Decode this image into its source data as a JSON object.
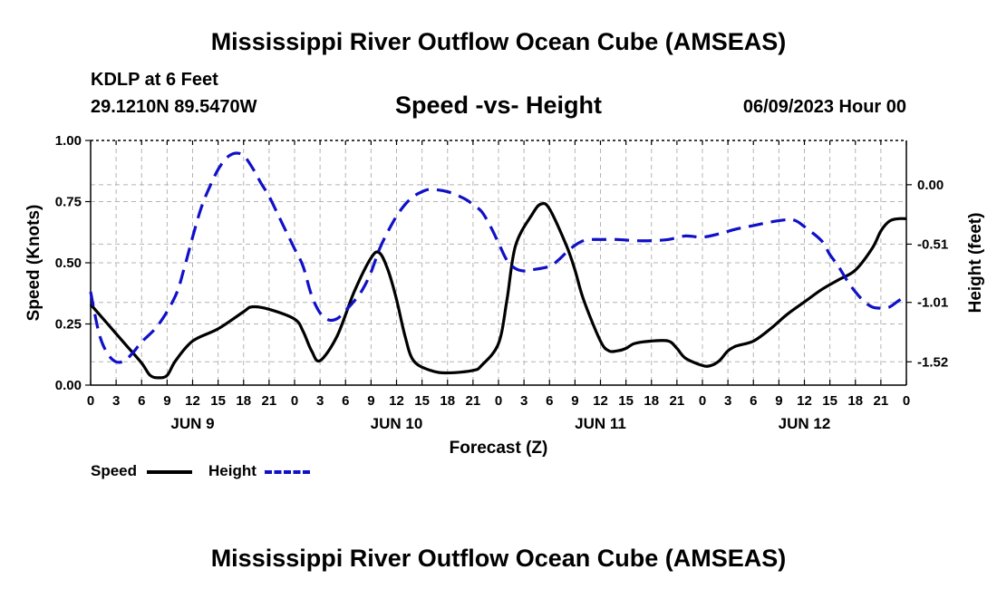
{
  "header": {
    "title": "Mississippi River Outflow Ocean Cube (AMSEAS)",
    "station": "KDLP at 6 Feet",
    "coords": "29.1210N  89.5470W",
    "chart_title": "Speed -vs- Height",
    "datetime": "06/09/2023 Hour 00",
    "footer_title": "Mississippi River Outflow Ocean Cube (AMSEAS)"
  },
  "legend": {
    "speed_label": "Speed",
    "height_label": "Height"
  },
  "colors": {
    "speed": "#000000",
    "height": "#1010c8",
    "grid": "#b4b4b4"
  },
  "chart_data": {
    "type": "line",
    "title": "Speed -vs- Height",
    "xlabel": "Forecast (Z)",
    "ylabel": "Speed (Knots)",
    "y2label": "Height (feet)",
    "x_ticks": [
      "0",
      "3",
      "6",
      "9",
      "12",
      "15",
      "18",
      "21",
      "0",
      "3",
      "6",
      "9",
      "12",
      "15",
      "18",
      "21",
      "0",
      "3",
      "6",
      "9",
      "12",
      "15",
      "18",
      "21",
      "0",
      "3",
      "6",
      "9",
      "12",
      "15",
      "18",
      "21",
      "0"
    ],
    "day_labels": [
      {
        "label": "JUN 9",
        "hour": 12
      },
      {
        "label": "JUN 10",
        "hour": 36
      },
      {
        "label": "JUN 11",
        "hour": 60
      },
      {
        "label": "JUN 12",
        "hour": 84
      }
    ],
    "xlim": [
      0,
      96
    ],
    "ylim": [
      0,
      1.0
    ],
    "y_ticks": [
      0.0,
      0.25,
      0.5,
      0.75,
      1.0
    ],
    "y_tick_labels": [
      "0.00",
      "0.25",
      "0.50",
      "0.75",
      "1.00"
    ],
    "y2lim": [
      -1.72,
      0.38
    ],
    "y2_ticks": [
      0.0,
      -0.51,
      -1.01,
      -1.52
    ],
    "y2_tick_labels": [
      "0.00",
      "-0.51",
      "-1.01",
      "-1.52"
    ],
    "grid": true,
    "series": [
      {
        "name": "Speed",
        "axis": "left",
        "style": "solid",
        "points": [
          [
            0,
            0.33
          ],
          [
            2,
            0.25
          ],
          [
            4,
            0.17
          ],
          [
            6,
            0.09
          ],
          [
            7,
            0.04
          ],
          [
            8,
            0.03
          ],
          [
            9,
            0.04
          ],
          [
            10,
            0.1
          ],
          [
            12,
            0.18
          ],
          [
            15,
            0.23
          ],
          [
            18,
            0.3
          ],
          [
            19,
            0.32
          ],
          [
            21,
            0.31
          ],
          [
            24,
            0.27
          ],
          [
            25,
            0.22
          ],
          [
            26,
            0.14
          ],
          [
            27,
            0.1
          ],
          [
            29,
            0.2
          ],
          [
            31,
            0.38
          ],
          [
            33,
            0.52
          ],
          [
            34,
            0.54
          ],
          [
            35,
            0.47
          ],
          [
            36,
            0.35
          ],
          [
            37,
            0.2
          ],
          [
            38,
            0.1
          ],
          [
            40,
            0.06
          ],
          [
            42,
            0.05
          ],
          [
            45,
            0.06
          ],
          [
            46,
            0.08
          ],
          [
            48,
            0.17
          ],
          [
            49,
            0.35
          ],
          [
            50,
            0.57
          ],
          [
            52,
            0.7
          ],
          [
            53,
            0.74
          ],
          [
            54,
            0.72
          ],
          [
            56,
            0.57
          ],
          [
            57,
            0.47
          ],
          [
            58,
            0.35
          ],
          [
            60,
            0.18
          ],
          [
            61,
            0.14
          ],
          [
            62,
            0.14
          ],
          [
            63,
            0.15
          ],
          [
            64,
            0.17
          ],
          [
            66,
            0.18
          ],
          [
            68,
            0.18
          ],
          [
            69,
            0.15
          ],
          [
            70,
            0.11
          ],
          [
            72,
            0.08
          ],
          [
            73,
            0.08
          ],
          [
            74,
            0.1
          ],
          [
            75,
            0.14
          ],
          [
            76,
            0.16
          ],
          [
            78,
            0.18
          ],
          [
            80,
            0.23
          ],
          [
            82,
            0.29
          ],
          [
            84,
            0.34
          ],
          [
            86,
            0.39
          ],
          [
            88,
            0.43
          ],
          [
            90,
            0.47
          ],
          [
            92,
            0.56
          ],
          [
            93,
            0.63
          ],
          [
            94,
            0.67
          ],
          [
            95,
            0.68
          ],
          [
            96,
            0.68
          ]
        ]
      },
      {
        "name": "Height",
        "axis": "right",
        "style": "dashed",
        "points": [
          [
            0,
            -0.92
          ],
          [
            1,
            -1.28
          ],
          [
            2,
            -1.45
          ],
          [
            3,
            -1.52
          ],
          [
            4,
            -1.51
          ],
          [
            5,
            -1.44
          ],
          [
            6,
            -1.35
          ],
          [
            8,
            -1.2
          ],
          [
            10,
            -0.95
          ],
          [
            11,
            -0.72
          ],
          [
            12,
            -0.45
          ],
          [
            13,
            -0.2
          ],
          [
            14,
            -0.02
          ],
          [
            15,
            0.13
          ],
          [
            16,
            0.23
          ],
          [
            17,
            0.27
          ],
          [
            18,
            0.25
          ],
          [
            19,
            0.15
          ],
          [
            20,
            0.02
          ],
          [
            21,
            -0.1
          ],
          [
            22,
            -0.25
          ],
          [
            23,
            -0.4
          ],
          [
            24,
            -0.55
          ],
          [
            25,
            -0.7
          ],
          [
            26,
            -0.95
          ],
          [
            27,
            -1.1
          ],
          [
            28,
            -1.16
          ],
          [
            29,
            -1.15
          ],
          [
            30,
            -1.08
          ],
          [
            31,
            -1.0
          ],
          [
            32,
            -0.9
          ],
          [
            33,
            -0.75
          ],
          [
            34,
            -0.55
          ],
          [
            35,
            -0.4
          ],
          [
            36,
            -0.27
          ],
          [
            37,
            -0.17
          ],
          [
            38,
            -0.1
          ],
          [
            39,
            -0.06
          ],
          [
            40,
            -0.04
          ],
          [
            42,
            -0.06
          ],
          [
            44,
            -0.12
          ],
          [
            45,
            -0.17
          ],
          [
            46,
            -0.23
          ],
          [
            47,
            -0.35
          ],
          [
            48,
            -0.5
          ],
          [
            49,
            -0.65
          ],
          [
            50,
            -0.72
          ],
          [
            51,
            -0.74
          ],
          [
            52,
            -0.73
          ],
          [
            54,
            -0.7
          ],
          [
            55,
            -0.65
          ],
          [
            56,
            -0.58
          ],
          [
            57,
            -0.52
          ],
          [
            58,
            -0.48
          ],
          [
            59,
            -0.47
          ],
          [
            60,
            -0.47
          ],
          [
            62,
            -0.47
          ],
          [
            64,
            -0.48
          ],
          [
            66,
            -0.48
          ],
          [
            68,
            -0.47
          ],
          [
            70,
            -0.44
          ],
          [
            72,
            -0.45
          ],
          [
            74,
            -0.42
          ],
          [
            76,
            -0.38
          ],
          [
            78,
            -0.35
          ],
          [
            80,
            -0.32
          ],
          [
            82,
            -0.3
          ],
          [
            83,
            -0.31
          ],
          [
            84,
            -0.36
          ],
          [
            86,
            -0.48
          ],
          [
            87,
            -0.6
          ],
          [
            88,
            -0.7
          ],
          [
            89,
            -0.82
          ],
          [
            90,
            -0.92
          ],
          [
            91,
            -1.0
          ],
          [
            92,
            -1.05
          ],
          [
            93,
            -1.06
          ],
          [
            94,
            -1.05
          ],
          [
            95,
            -1.0
          ],
          [
            96,
            -0.95
          ]
        ]
      }
    ]
  }
}
